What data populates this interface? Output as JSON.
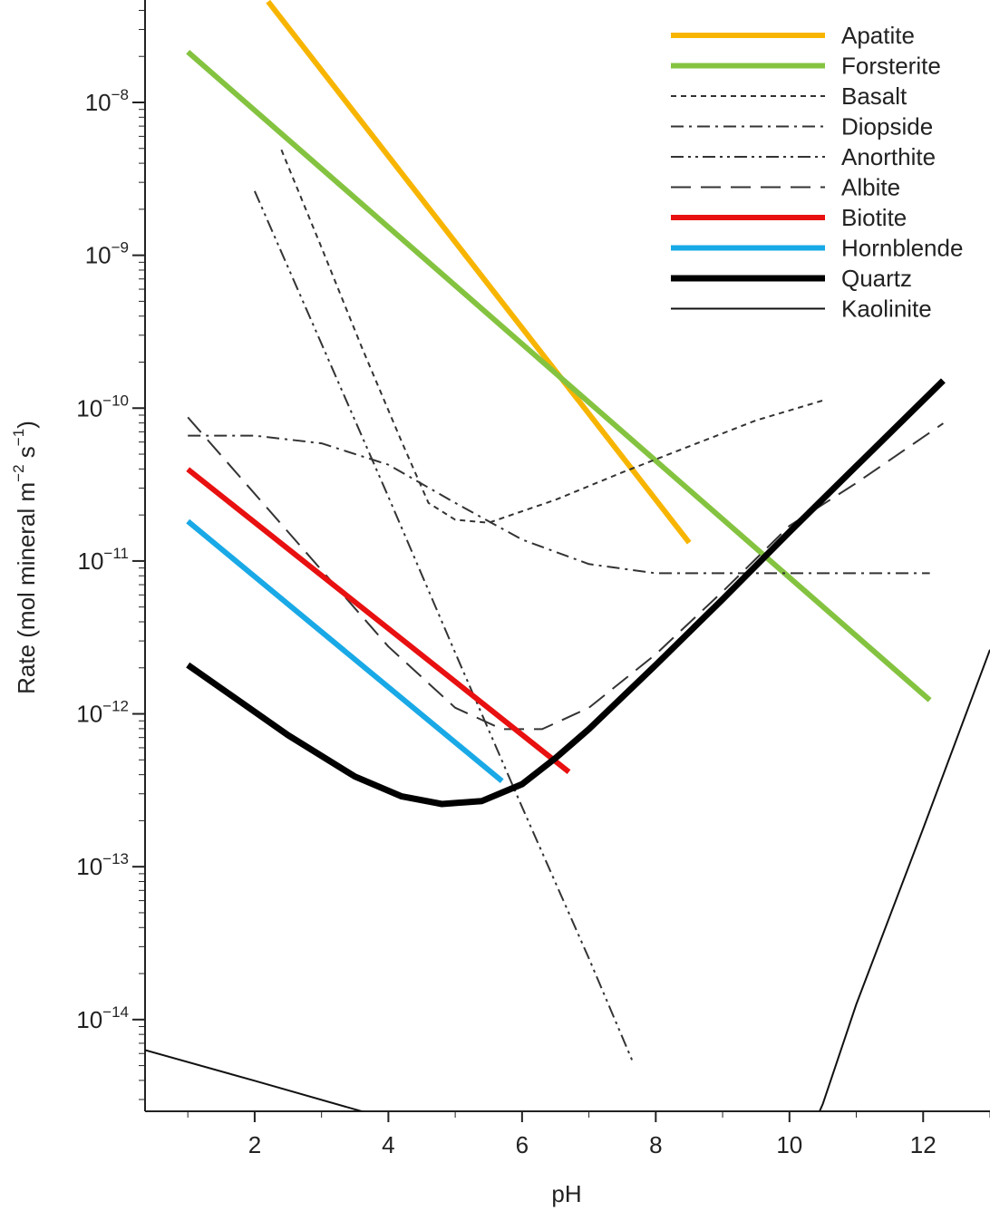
{
  "chart_data": {
    "type": "line",
    "xlabel": "pH",
    "ylabel_parts": {
      "main": "Rate (mol mineral m",
      "exp1": "−2",
      "mid": " s",
      "exp2": "−1",
      "end": ")"
    },
    "xlim": [
      0.36,
      13
    ],
    "ylim": [
      -14.6,
      -7.33
    ],
    "y_scale": "log",
    "grid": false,
    "legend_position": "top-right",
    "x_ticks": [
      2,
      4,
      6,
      8,
      10,
      12
    ],
    "y_ticks": [
      {
        "value": -8,
        "base": "10",
        "exp": "−8"
      },
      {
        "value": -9,
        "base": "10",
        "exp": "−9"
      },
      {
        "value": -10,
        "base": "10",
        "exp": "−10"
      },
      {
        "value": -11,
        "base": "10",
        "exp": "−11"
      },
      {
        "value": -12,
        "base": "10",
        "exp": "−12"
      },
      {
        "value": -13,
        "base": "10",
        "exp": "−13"
      },
      {
        "value": -14,
        "base": "10",
        "exp": "−14"
      }
    ],
    "series": [
      {
        "name": "Apatite",
        "color": "#f7b500",
        "width": 6,
        "dash": "",
        "log10_rate": true,
        "points": [
          [
            2.2,
            -7.34
          ],
          [
            8.5,
            -10.88
          ]
        ]
      },
      {
        "name": "Forsterite",
        "color": "#84c340",
        "width": 6,
        "dash": "",
        "log10_rate": true,
        "points": [
          [
            1.0,
            -7.67
          ],
          [
            12.1,
            -11.91
          ]
        ]
      },
      {
        "name": "Basalt",
        "color": "#333333",
        "width": 2,
        "dash": "6,5",
        "log10_rate": true,
        "points": [
          [
            2.4,
            -8.31
          ],
          [
            3.0,
            -8.95
          ],
          [
            3.6,
            -9.6
          ],
          [
            4.2,
            -10.22
          ],
          [
            4.6,
            -10.62
          ],
          [
            5.0,
            -10.73
          ],
          [
            5.5,
            -10.75
          ],
          [
            6.5,
            -10.6
          ],
          [
            7.5,
            -10.42
          ],
          [
            8.5,
            -10.25
          ],
          [
            9.5,
            -10.08
          ],
          [
            10.5,
            -9.95
          ]
        ]
      },
      {
        "name": "Diopside",
        "color": "#333333",
        "width": 2,
        "dash": "14,6,3,6",
        "log10_rate": true,
        "points": [
          [
            1.0,
            -10.18
          ],
          [
            2.0,
            -10.18
          ],
          [
            3.0,
            -10.23
          ],
          [
            4.0,
            -10.37
          ],
          [
            5.0,
            -10.62
          ],
          [
            6.0,
            -10.86
          ],
          [
            7.0,
            -11.02
          ],
          [
            8.0,
            -11.08
          ],
          [
            9.0,
            -11.08
          ],
          [
            10.0,
            -11.08
          ],
          [
            11.0,
            -11.08
          ],
          [
            12.1,
            -11.08
          ]
        ]
      },
      {
        "name": "Anorthite",
        "color": "#333333",
        "width": 2,
        "dash": "14,5,3,5,3,5",
        "log10_rate": true,
        "points": [
          [
            2.0,
            -8.58
          ],
          [
            3.0,
            -9.58
          ],
          [
            4.0,
            -10.58
          ],
          [
            5.0,
            -11.6
          ],
          [
            6.0,
            -12.61
          ],
          [
            7.0,
            -13.6
          ],
          [
            7.65,
            -14.27
          ]
        ]
      },
      {
        "name": "Albite",
        "color": "#333333",
        "width": 2,
        "dash": "22,11",
        "log10_rate": true,
        "points": [
          [
            1.0,
            -10.06
          ],
          [
            2.0,
            -10.56
          ],
          [
            3.0,
            -11.06
          ],
          [
            4.0,
            -11.56
          ],
          [
            5.0,
            -11.96
          ],
          [
            5.7,
            -12.1
          ],
          [
            6.3,
            -12.1
          ],
          [
            7.0,
            -11.96
          ],
          [
            8.0,
            -11.61
          ],
          [
            9.0,
            -11.2
          ],
          [
            10.0,
            -10.77
          ],
          [
            11.0,
            -10.49
          ],
          [
            12.3,
            -10.1
          ]
        ]
      },
      {
        "name": "Biotite",
        "color": "#e81010",
        "width": 6,
        "dash": "",
        "log10_rate": true,
        "points": [
          [
            1.0,
            -10.4
          ],
          [
            6.7,
            -12.38
          ]
        ]
      },
      {
        "name": "Hornblende",
        "color": "#19a9e6",
        "width": 6,
        "dash": "",
        "log10_rate": true,
        "points": [
          [
            1.0,
            -10.74
          ],
          [
            5.7,
            -12.44
          ]
        ]
      },
      {
        "name": "Quartz",
        "color": "#000000",
        "width": 7,
        "dash": "",
        "log10_rate": true,
        "points": [
          [
            1.0,
            -11.68
          ],
          [
            2.5,
            -12.14
          ],
          [
            3.5,
            -12.41
          ],
          [
            4.2,
            -12.54
          ],
          [
            4.8,
            -12.59
          ],
          [
            5.4,
            -12.57
          ],
          [
            6.0,
            -12.46
          ],
          [
            6.5,
            -12.29
          ],
          [
            7.0,
            -12.1
          ],
          [
            8.0,
            -11.68
          ],
          [
            9.0,
            -11.25
          ],
          [
            10.0,
            -10.81
          ],
          [
            11.0,
            -10.38
          ],
          [
            12.3,
            -9.82
          ]
        ]
      },
      {
        "name": "Kaolinite",
        "color": "#111111",
        "width": 2,
        "dash": "",
        "log10_rate": true,
        "points": [
          [
            0.36,
            -14.2
          ],
          [
            2.0,
            -14.4
          ],
          [
            4.0,
            -14.65
          ],
          [
            6.0,
            -14.9
          ],
          [
            8.0,
            -15.14
          ],
          [
            8.8,
            -15.25
          ],
          [
            9.2,
            -15.28
          ],
          [
            9.6,
            -15.23
          ],
          [
            10.0,
            -15.05
          ],
          [
            10.5,
            -14.55
          ],
          [
            11.0,
            -13.9
          ],
          [
            12.0,
            -12.75
          ],
          [
            13.0,
            -11.58
          ]
        ]
      }
    ]
  }
}
